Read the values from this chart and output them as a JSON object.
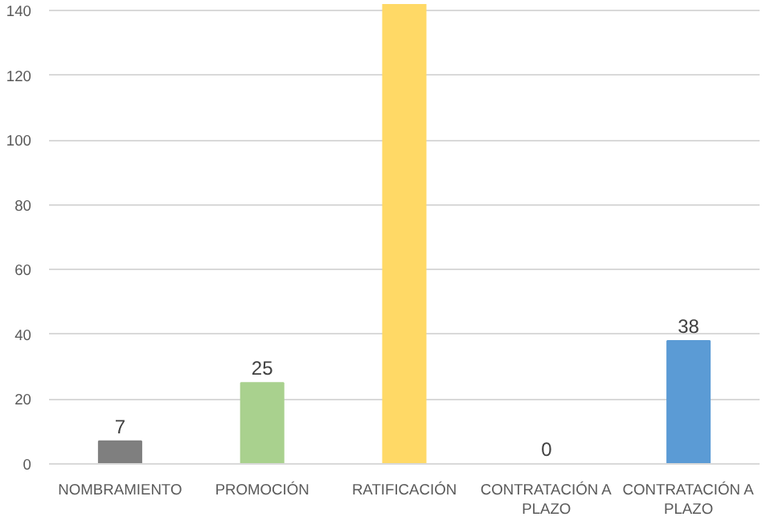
{
  "chart_data": {
    "type": "bar",
    "categories": [
      "NOMBRAMIENTO",
      "PROMOCIÓN",
      "RATIFICACIÓN",
      "CONTRATACIÓN A PLAZO",
      "CONTRATACIÓN A PLAZO"
    ],
    "values": [
      7,
      25,
      142,
      0,
      38
    ],
    "colors": [
      "#7f7f7f",
      "#a9d18e",
      "#ffd966",
      "#ed7d31",
      "#5b9bd5"
    ],
    "value_labels": [
      "7",
      "25",
      null,
      "0",
      "38"
    ],
    "ylim": [
      0,
      142
    ],
    "yticks": [
      0,
      20,
      40,
      60,
      80,
      100,
      120,
      140
    ],
    "grid": "y"
  }
}
